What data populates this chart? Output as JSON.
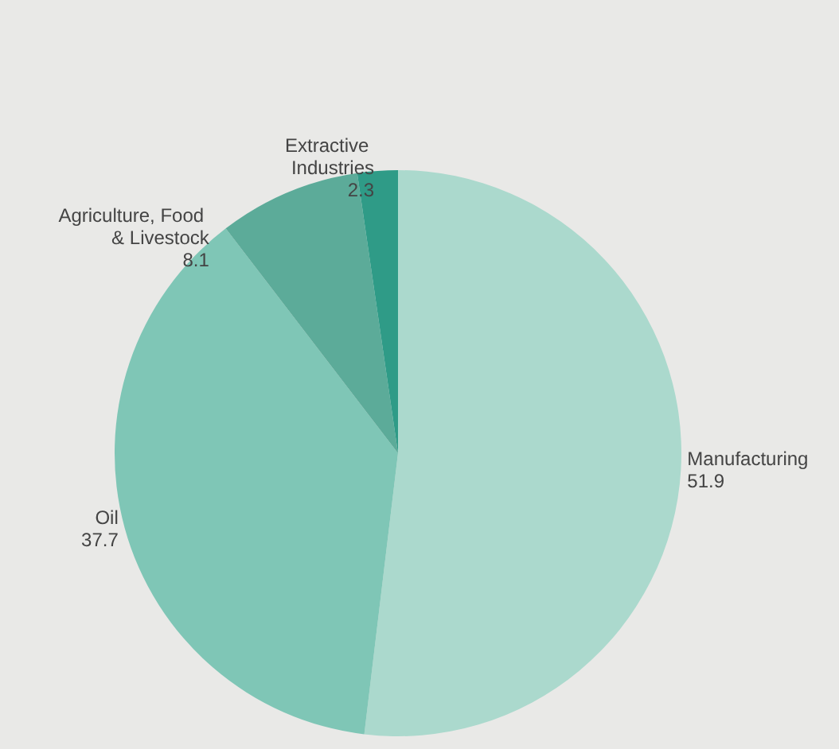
{
  "chart_data": {
    "type": "pie",
    "categories": [
      "Manufacturing",
      "Oil",
      "Agriculture, Food & Livestock",
      "Extractive Industries"
    ],
    "values": [
      51.9,
      37.7,
      8.1,
      2.3
    ],
    "colors": [
      "#abd9cd",
      "#7fc6b6",
      "#5cab99",
      "#2f9b87"
    ],
    "data_labels": true,
    "legend": false
  }
}
